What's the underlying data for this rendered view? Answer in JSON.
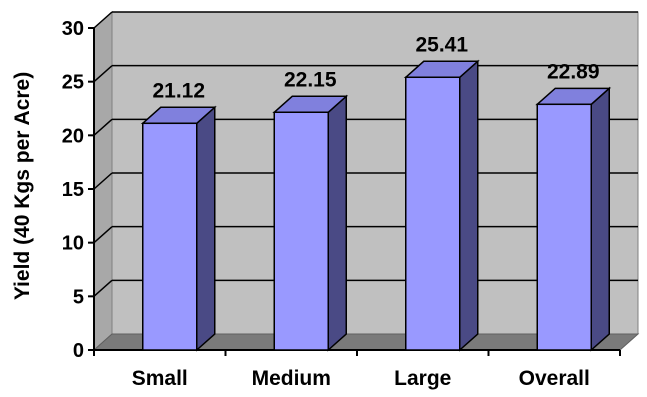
{
  "chart_data": {
    "type": "bar",
    "categories": [
      "Small",
      "Medium",
      "Large",
      "Overall"
    ],
    "values": [
      21.12,
      22.15,
      25.41,
      22.89
    ],
    "data_labels": [
      "21.12",
      "22.15",
      "25.41",
      "22.89"
    ],
    "title": "",
    "xlabel": "",
    "ylabel": "Yield (40 Kgs per Acre)",
    "ylim": [
      0,
      30
    ],
    "yticks": [
      0,
      5,
      10,
      15,
      20,
      25,
      30
    ],
    "ytick_labels": [
      "0",
      "5",
      "10",
      "15",
      "20",
      "25",
      "30"
    ],
    "grid": true,
    "legend": "none",
    "style": "3d",
    "colors": {
      "bar_front": "#9999ff",
      "bar_side": "#4a4a85",
      "bar_top": "#8080dd",
      "wall": "#c0c0c0",
      "floor": "#7a7a7a",
      "gridline": "#000000"
    }
  }
}
